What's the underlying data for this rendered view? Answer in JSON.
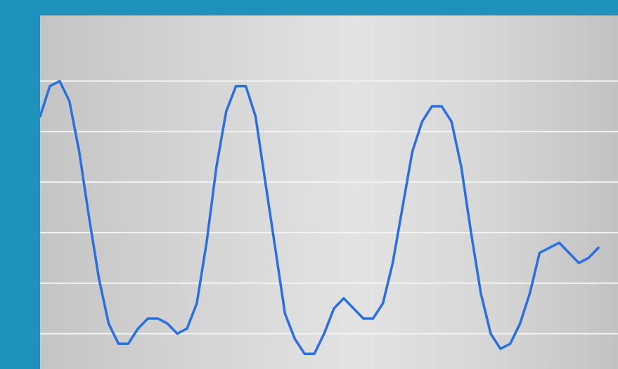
{
  "colors": {
    "frame": "#1e92bb",
    "series": "#2a6fe0",
    "gridline": "#f2f2f2"
  },
  "chart_data": {
    "type": "line",
    "title": "",
    "xlabel": "",
    "ylabel": "",
    "grid": true,
    "legend": "none",
    "xlim": [
      0,
      59
    ],
    "ylim": [
      0,
      7
    ],
    "gridlines_y": [
      0.7,
      1.7,
      2.7,
      3.7,
      4.7,
      5.7
    ],
    "series": [
      {
        "values": [
          5.0,
          5.6,
          5.7,
          5.3,
          4.3,
          3.0,
          1.8,
          0.9,
          0.5,
          0.5,
          0.8,
          1.0,
          1.0,
          0.9,
          0.7,
          0.8,
          1.3,
          2.5,
          4.0,
          5.1,
          5.6,
          5.6,
          5.0,
          3.7,
          2.4,
          1.1,
          0.6,
          0.3,
          0.3,
          0.7,
          1.2,
          1.4,
          1.2,
          1.0,
          1.0,
          1.3,
          2.1,
          3.2,
          4.3,
          4.9,
          5.2,
          5.2,
          4.9,
          4.0,
          2.7,
          1.5,
          0.7,
          0.4,
          0.5,
          0.9,
          1.5,
          2.3,
          2.4,
          2.5,
          2.3,
          2.1,
          2.2,
          2.4
        ]
      }
    ]
  }
}
